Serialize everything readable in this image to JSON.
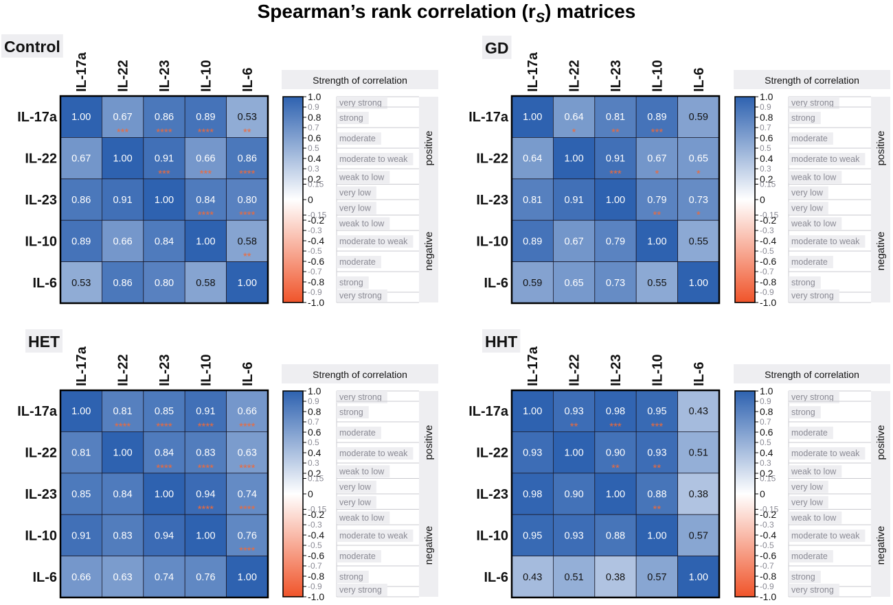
{
  "figure": {
    "title_prefix": "Spearman’s rank correlation (r",
    "title_sub": "S",
    "title_suffix": ") matrices"
  },
  "colors": {
    "strong_positive": "#2e62b0",
    "zero": "#ffffff",
    "strong_negative": "#f0542a",
    "significance_stars": "#ef6a3a",
    "label_background": "#eeeef1",
    "grid_line": "#000000"
  },
  "legend": {
    "title": "Strength of correlation",
    "colorbar_ticks": [
      {
        "value": 1.0,
        "label": "1.0",
        "major": true
      },
      {
        "value": 0.9,
        "label": "0.9",
        "major": false
      },
      {
        "value": 0.8,
        "label": "0.8",
        "major": true
      },
      {
        "value": 0.7,
        "label": "0.7",
        "major": false
      },
      {
        "value": 0.6,
        "label": "0.6",
        "major": true
      },
      {
        "value": 0.5,
        "label": "0.5",
        "major": false
      },
      {
        "value": 0.4,
        "label": "0.4",
        "major": true
      },
      {
        "value": 0.3,
        "label": "0.3",
        "major": false
      },
      {
        "value": 0.2,
        "label": "0.2",
        "major": true
      },
      {
        "value": 0.15,
        "label": "0.15",
        "major": false
      },
      {
        "value": 0.0,
        "label": "0",
        "major": true
      },
      {
        "value": -0.15,
        "label": "-0.15",
        "major": false
      },
      {
        "value": -0.2,
        "label": "-0.2",
        "major": true
      },
      {
        "value": -0.3,
        "label": "-0.3",
        "major": false
      },
      {
        "value": -0.4,
        "label": "-0.4",
        "major": true
      },
      {
        "value": -0.5,
        "label": "-0.5",
        "major": false
      },
      {
        "value": -0.6,
        "label": "-0.6",
        "major": true
      },
      {
        "value": -0.7,
        "label": "-0.7",
        "major": false
      },
      {
        "value": -0.8,
        "label": "-0.8",
        "major": true
      },
      {
        "value": -0.9,
        "label": "-0.9",
        "major": false
      },
      {
        "value": -1.0,
        "label": "-1.0",
        "major": true
      }
    ],
    "strength_bands": [
      {
        "label": "very strong",
        "upper": 1.0,
        "lower": 0.9
      },
      {
        "label": "strong",
        "upper": 0.9,
        "lower": 0.7
      },
      {
        "label": "moderate",
        "upper": 0.7,
        "lower": 0.5
      },
      {
        "label": "moderate to weak",
        "upper": 0.5,
        "lower": 0.3
      },
      {
        "label": "weak to low",
        "upper": 0.3,
        "lower": 0.15
      },
      {
        "label": "very low",
        "upper": 0.15,
        "lower": 0.0
      },
      {
        "label": "very low",
        "upper": 0.0,
        "lower": -0.15
      },
      {
        "label": "weak to low",
        "upper": -0.15,
        "lower": -0.3
      },
      {
        "label": "moderate to weak",
        "upper": -0.3,
        "lower": -0.5
      },
      {
        "label": "moderate",
        "upper": -0.5,
        "lower": -0.7
      },
      {
        "label": "strong",
        "upper": -0.7,
        "lower": -0.9
      },
      {
        "label": "very strong",
        "upper": -0.9,
        "lower": -1.0
      }
    ],
    "side_labels": {
      "positive": "positive",
      "negative": "negative"
    },
    "range": [
      -1.0,
      1.0
    ]
  },
  "chart_data": [
    {
      "type": "heatmap",
      "title": "Control",
      "variables": [
        "IL-17a",
        "IL-22",
        "IL-23",
        "IL-10",
        "IL-6"
      ],
      "values": [
        [
          1.0,
          0.67,
          0.86,
          0.89,
          0.53
        ],
        [
          0.67,
          1.0,
          0.91,
          0.66,
          0.86
        ],
        [
          0.86,
          0.91,
          1.0,
          0.84,
          0.8
        ],
        [
          0.89,
          0.66,
          0.84,
          1.0,
          0.58
        ],
        [
          0.53,
          0.86,
          0.8,
          0.58,
          1.0
        ]
      ],
      "significance": [
        [
          "",
          "***",
          "****",
          "****",
          "**"
        ],
        [
          "",
          "",
          "***",
          "***",
          "****"
        ],
        [
          "",
          "",
          "",
          "****",
          "****"
        ],
        [
          "",
          "",
          "",
          "",
          "**"
        ],
        [
          "",
          "",
          "",
          "",
          ""
        ]
      ],
      "color_range": [
        -1.0,
        1.0
      ]
    },
    {
      "type": "heatmap",
      "title": "GD",
      "variables": [
        "IL-17a",
        "IL-22",
        "IL-23",
        "IL-10",
        "IL-6"
      ],
      "values": [
        [
          1.0,
          0.64,
          0.81,
          0.89,
          0.59
        ],
        [
          0.64,
          1.0,
          0.91,
          0.67,
          0.65
        ],
        [
          0.81,
          0.91,
          1.0,
          0.79,
          0.73
        ],
        [
          0.89,
          0.67,
          0.79,
          1.0,
          0.55
        ],
        [
          0.59,
          0.65,
          0.73,
          0.55,
          1.0
        ]
      ],
      "significance": [
        [
          "",
          "*",
          "**",
          "***",
          ""
        ],
        [
          "",
          "",
          "***",
          "*",
          "*"
        ],
        [
          "",
          "",
          "",
          "**",
          "*"
        ],
        [
          "",
          "",
          "",
          "",
          ""
        ],
        [
          "",
          "",
          "",
          "",
          ""
        ]
      ],
      "color_range": [
        -1.0,
        1.0
      ]
    },
    {
      "type": "heatmap",
      "title": "HET",
      "variables": [
        "IL-17a",
        "IL-22",
        "IL-23",
        "IL-10",
        "IL-6"
      ],
      "values": [
        [
          1.0,
          0.81,
          0.85,
          0.91,
          0.66
        ],
        [
          0.81,
          1.0,
          0.84,
          0.83,
          0.63
        ],
        [
          0.85,
          0.84,
          1.0,
          0.94,
          0.74
        ],
        [
          0.91,
          0.83,
          0.94,
          1.0,
          0.76
        ],
        [
          0.66,
          0.63,
          0.74,
          0.76,
          1.0
        ]
      ],
      "significance": [
        [
          "",
          "****",
          "****",
          "****",
          "****"
        ],
        [
          "",
          "",
          "****",
          "****",
          "****"
        ],
        [
          "",
          "",
          "",
          "****",
          "****"
        ],
        [
          "",
          "",
          "",
          "",
          "****"
        ],
        [
          "",
          "",
          "",
          "",
          ""
        ]
      ],
      "color_range": [
        -1.0,
        1.0
      ]
    },
    {
      "type": "heatmap",
      "title": "HHT",
      "variables": [
        "IL-17a",
        "IL-22",
        "IL-23",
        "IL-10",
        "IL-6"
      ],
      "values": [
        [
          1.0,
          0.93,
          0.98,
          0.95,
          0.43
        ],
        [
          0.93,
          1.0,
          0.9,
          0.93,
          0.51
        ],
        [
          0.98,
          0.9,
          1.0,
          0.88,
          0.38
        ],
        [
          0.95,
          0.93,
          0.88,
          1.0,
          0.57
        ],
        [
          0.43,
          0.51,
          0.38,
          0.57,
          1.0
        ]
      ],
      "significance": [
        [
          "",
          "**",
          "***",
          "***",
          ""
        ],
        [
          "",
          "",
          "**",
          "**",
          ""
        ],
        [
          "",
          "",
          "",
          "**",
          ""
        ],
        [
          "",
          "",
          "",
          "",
          ""
        ],
        [
          "",
          "",
          "",
          "",
          ""
        ]
      ],
      "color_range": [
        -1.0,
        1.0
      ]
    }
  ]
}
